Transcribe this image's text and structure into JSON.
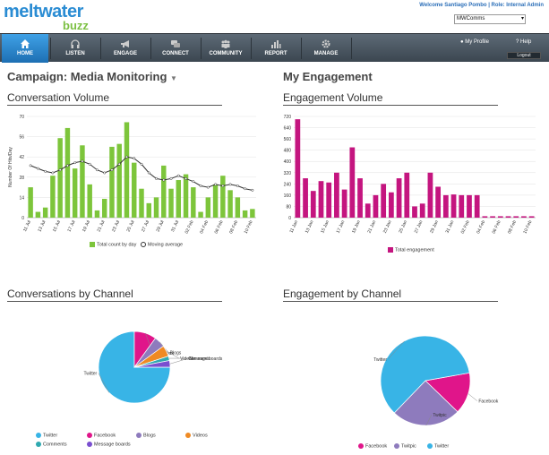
{
  "header": {
    "logo_main": "meltwater",
    "logo_sub": "buzz",
    "welcome": "Welcome Santiago Pombo | Role: Internal Admin",
    "account": "MWComms"
  },
  "nav": {
    "items": [
      {
        "label": "HOME",
        "icon": "home-icon"
      },
      {
        "label": "LISTEN",
        "icon": "headphones-icon"
      },
      {
        "label": "ENGAGE",
        "icon": "megaphone-icon"
      },
      {
        "label": "CONNECT",
        "icon": "chat-icon"
      },
      {
        "label": "COMMUNITY",
        "icon": "people-icon"
      },
      {
        "label": "REPORT",
        "icon": "chart-icon"
      },
      {
        "label": "MANAGE",
        "icon": "gear-icon"
      }
    ],
    "profile": "My Profile",
    "help": "Help",
    "logout": "Logout"
  },
  "campaign": {
    "title": "Campaign: Media Monitoring",
    "arrow": "▼"
  },
  "engagement_title": "My Engagement",
  "colors": {
    "conv_bar": "#7dc53b",
    "eng_bar": "#c4157f",
    "twitter": "#38b4e6",
    "facebook": "#e0158a",
    "blogs": "#8e7bbd",
    "videos": "#ef8a23",
    "comments": "#2fa9b0",
    "message_boards": "#7a4fd0"
  },
  "chart_data": [
    {
      "type": "bar",
      "title": "Conversation Volume",
      "xlabel": "",
      "ylabel": "Number Of Hits/Day",
      "ylim": [
        0,
        70
      ],
      "yticks": [
        0,
        14,
        28,
        42,
        56,
        70
      ],
      "x_tick_labels": [
        "11 Jul",
        "13 Jul",
        "15 Jul",
        "17 Jul",
        "19 Jul",
        "21 Jul",
        "23 Jul",
        "25 Jul",
        "27 Jul",
        "29 Jul",
        "31 Jul",
        "02 Feb",
        "04 Feb",
        "06 Feb",
        "08 Feb",
        "10 Feb"
      ],
      "series": [
        {
          "name": "Total count by day",
          "values": [
            21,
            4,
            7,
            29,
            55,
            62,
            34,
            50,
            23,
            5,
            13,
            49,
            51,
            66,
            38,
            20,
            10,
            14,
            36,
            20,
            26,
            30,
            21,
            4,
            14,
            23,
            29,
            19,
            14,
            5,
            6
          ]
        },
        {
          "name": "Moving average",
          "values": [
            36,
            34,
            32,
            31,
            33,
            36,
            38,
            39,
            37,
            33,
            31,
            33,
            37,
            42,
            41,
            37,
            31,
            27,
            26,
            27,
            29,
            27,
            25,
            22,
            21,
            23,
            22,
            23,
            22,
            20,
            19
          ]
        }
      ],
      "legend": [
        "Total count by day",
        "Moving average"
      ]
    },
    {
      "type": "bar",
      "title": "Engagement Volume",
      "xlabel": "",
      "ylabel": "",
      "ylim": [
        0,
        720
      ],
      "yticks": [
        0,
        80,
        160,
        240,
        320,
        400,
        480,
        560,
        640,
        720
      ],
      "x_tick_labels": [
        "11 Jan",
        "13 Jan",
        "15 Jan",
        "17 Jan",
        "19 Jan",
        "21 Jan",
        "23 Jan",
        "25 Jan",
        "27 Jan",
        "29 Jan",
        "31 Jan",
        "02 Feb",
        "04 Feb",
        "06 Feb",
        "08 Feb",
        "10 Feb"
      ],
      "series": [
        {
          "name": "Total engagement",
          "values": [
            700,
            280,
            190,
            260,
            250,
            320,
            200,
            500,
            280,
            100,
            160,
            240,
            180,
            280,
            320,
            80,
            100,
            320,
            220,
            160,
            165,
            160,
            160,
            160,
            10,
            10,
            10,
            10,
            10,
            10,
            10
          ]
        }
      ],
      "legend": [
        "Total engagement"
      ]
    },
    {
      "type": "pie",
      "title": "Conversations by Channel",
      "labels": [
        "Twitter",
        "Facebook",
        "Blogs",
        "Videos",
        "Comments",
        "Message boards"
      ],
      "values": [
        75,
        10,
        5,
        5,
        2,
        3
      ]
    },
    {
      "type": "pie",
      "title": "Engagement by Channel",
      "labels": [
        "Facebook",
        "Twitpic",
        "Twitter"
      ],
      "values": [
        15,
        25,
        60
      ]
    }
  ]
}
